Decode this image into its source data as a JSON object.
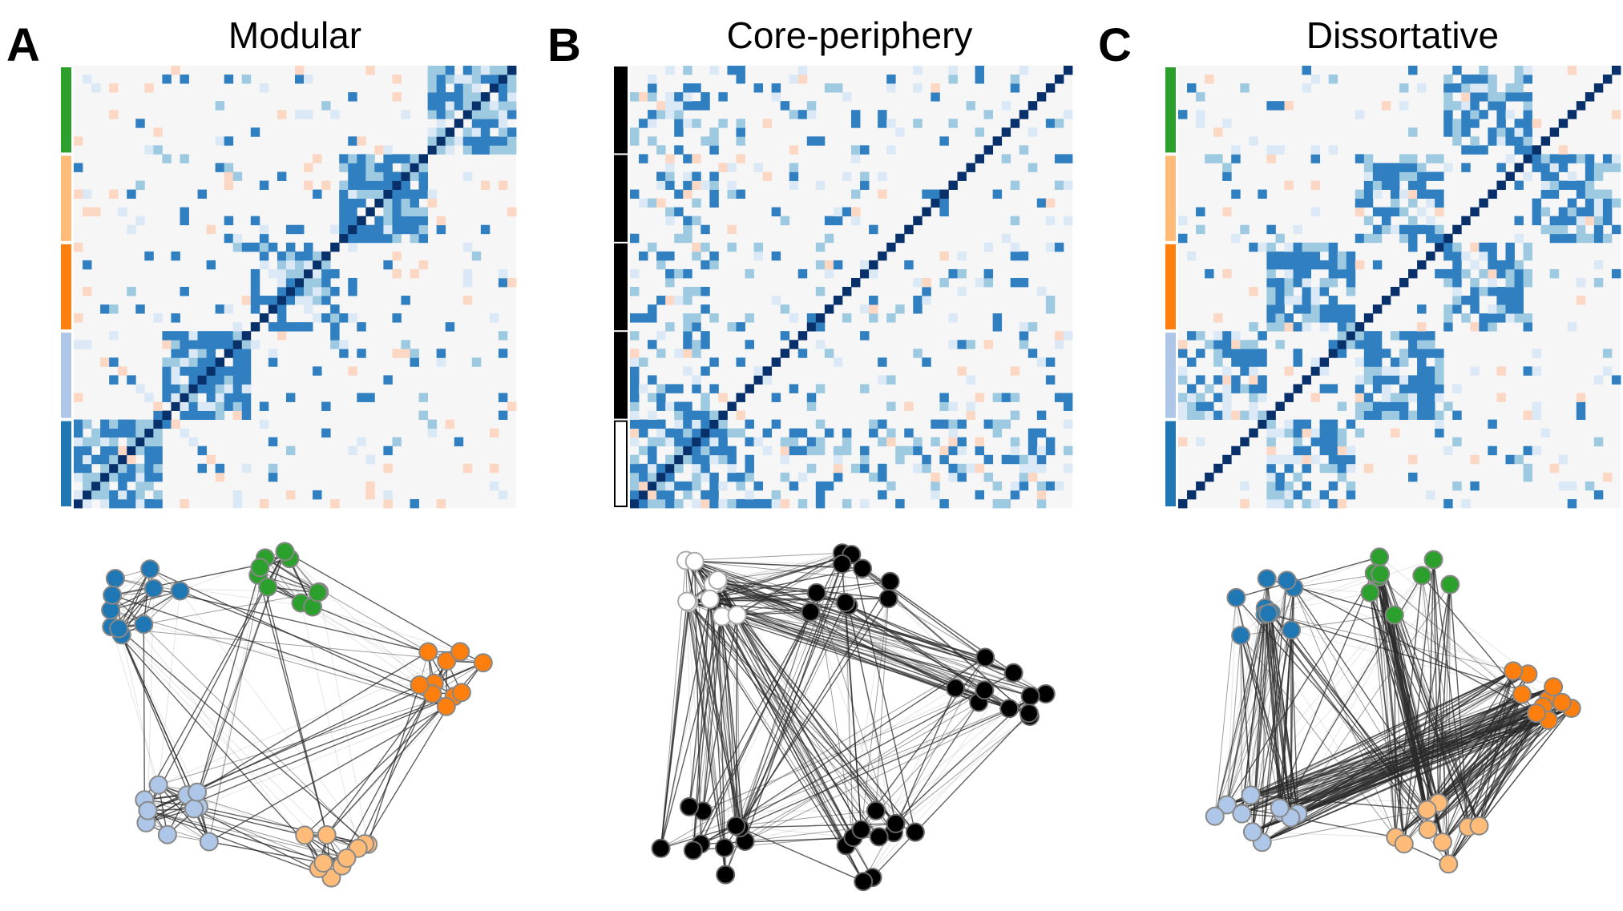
{
  "colors": {
    "background": "#f6f6f6",
    "diagonal": "#08306b",
    "strong": "#2f7fc1",
    "light": "#9ecae1",
    "faint": "#dbe9f6",
    "negative": "#fbd7c4",
    "edge": "#2b2b2b",
    "node_stroke": "#888888",
    "community": [
      "#1f77b4",
      "#aec7e8",
      "#ff7f0e",
      "#ffbb78",
      "#2ca02c"
    ],
    "core": "#000000",
    "periphery": "#ffffff"
  },
  "nodes_per_group": 10,
  "panels": [
    {
      "letter": "A",
      "title": "Modular",
      "pattern": "modular",
      "groups": "community"
    },
    {
      "letter": "B",
      "title": "Core-periphery",
      "pattern": "core-periphery",
      "groups": "core-periphery"
    },
    {
      "letter": "C",
      "title": "Dissortative",
      "pattern": "dissortative",
      "groups": "community"
    }
  ]
}
